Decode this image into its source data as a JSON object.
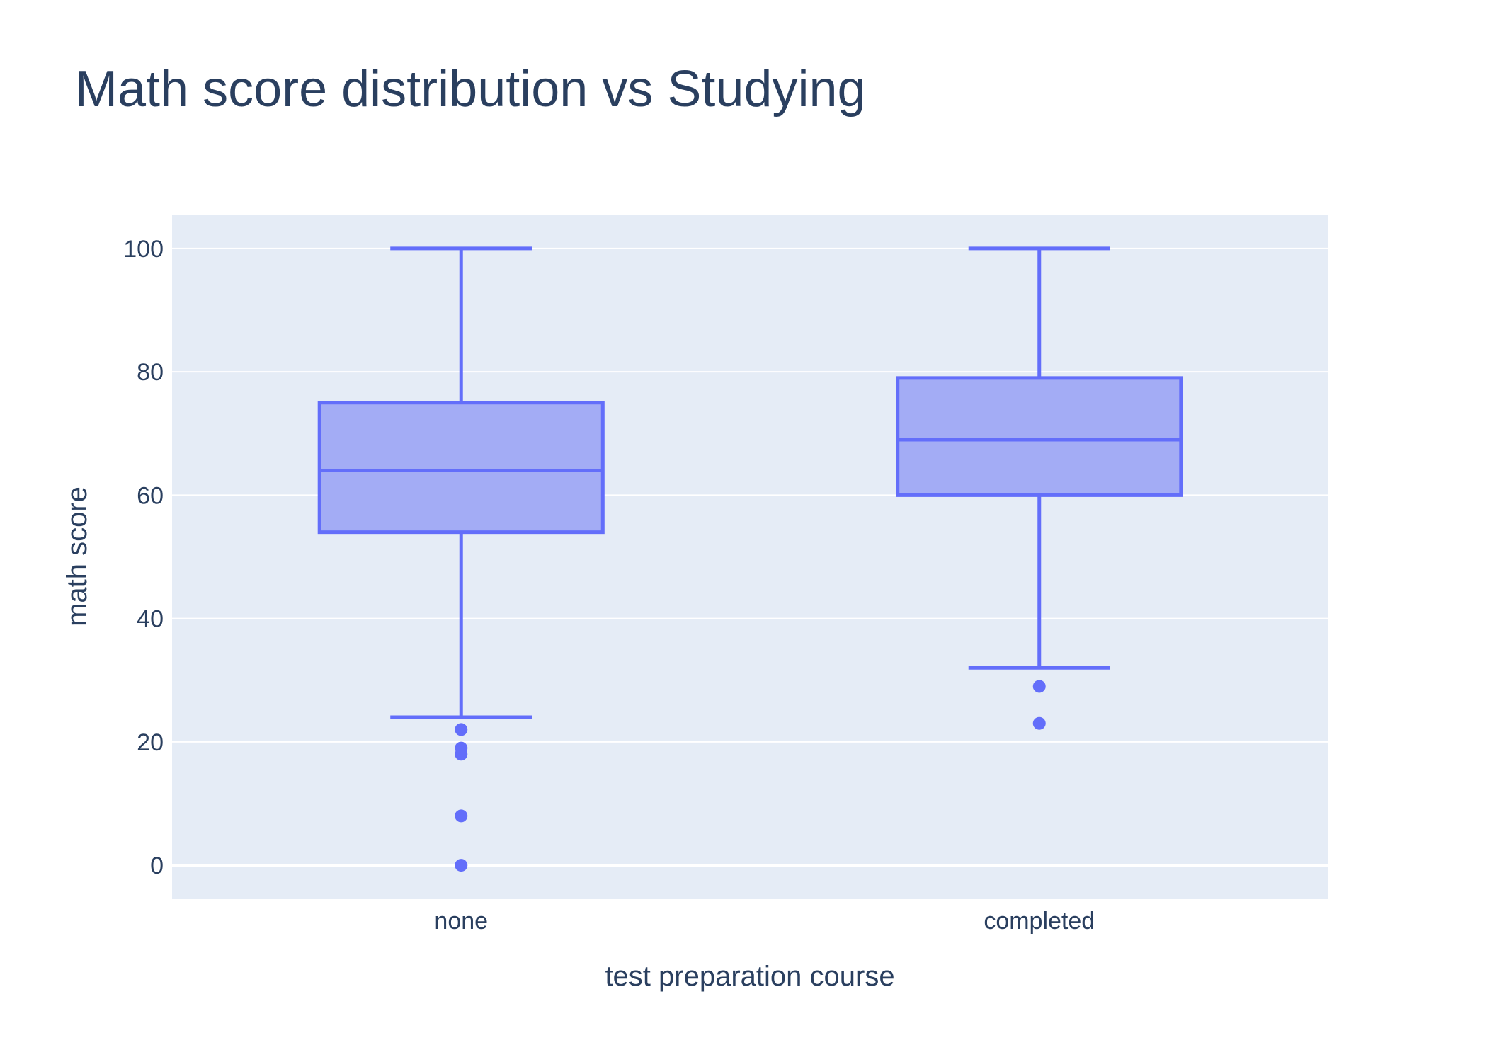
{
  "colors": {
    "plot_bg": "#e5ecf6",
    "grid": "#ffffff",
    "box_line": "#636efa",
    "box_fill": "#a3acf5",
    "text": "#2a3f5f",
    "page_bg": "#ffffff"
  },
  "chart_data": {
    "type": "box",
    "title": "Math score distribution vs Studying",
    "xlabel": "test preparation course",
    "ylabel": "math score",
    "ylim": [
      -5.5,
      105.5
    ],
    "yticks": [
      0,
      20,
      40,
      60,
      80,
      100
    ],
    "grid": true,
    "legend": "none",
    "categories": [
      "none",
      "completed"
    ],
    "boxes": [
      {
        "category": "none",
        "whisker_low": 24,
        "q1": 54,
        "median": 64,
        "q3": 75,
        "whisker_high": 100,
        "outliers": [
          22,
          19,
          18,
          8,
          0
        ]
      },
      {
        "category": "completed",
        "whisker_low": 32,
        "q1": 60,
        "median": 69,
        "q3": 79,
        "whisker_high": 100,
        "outliers": [
          29,
          23
        ]
      }
    ]
  }
}
